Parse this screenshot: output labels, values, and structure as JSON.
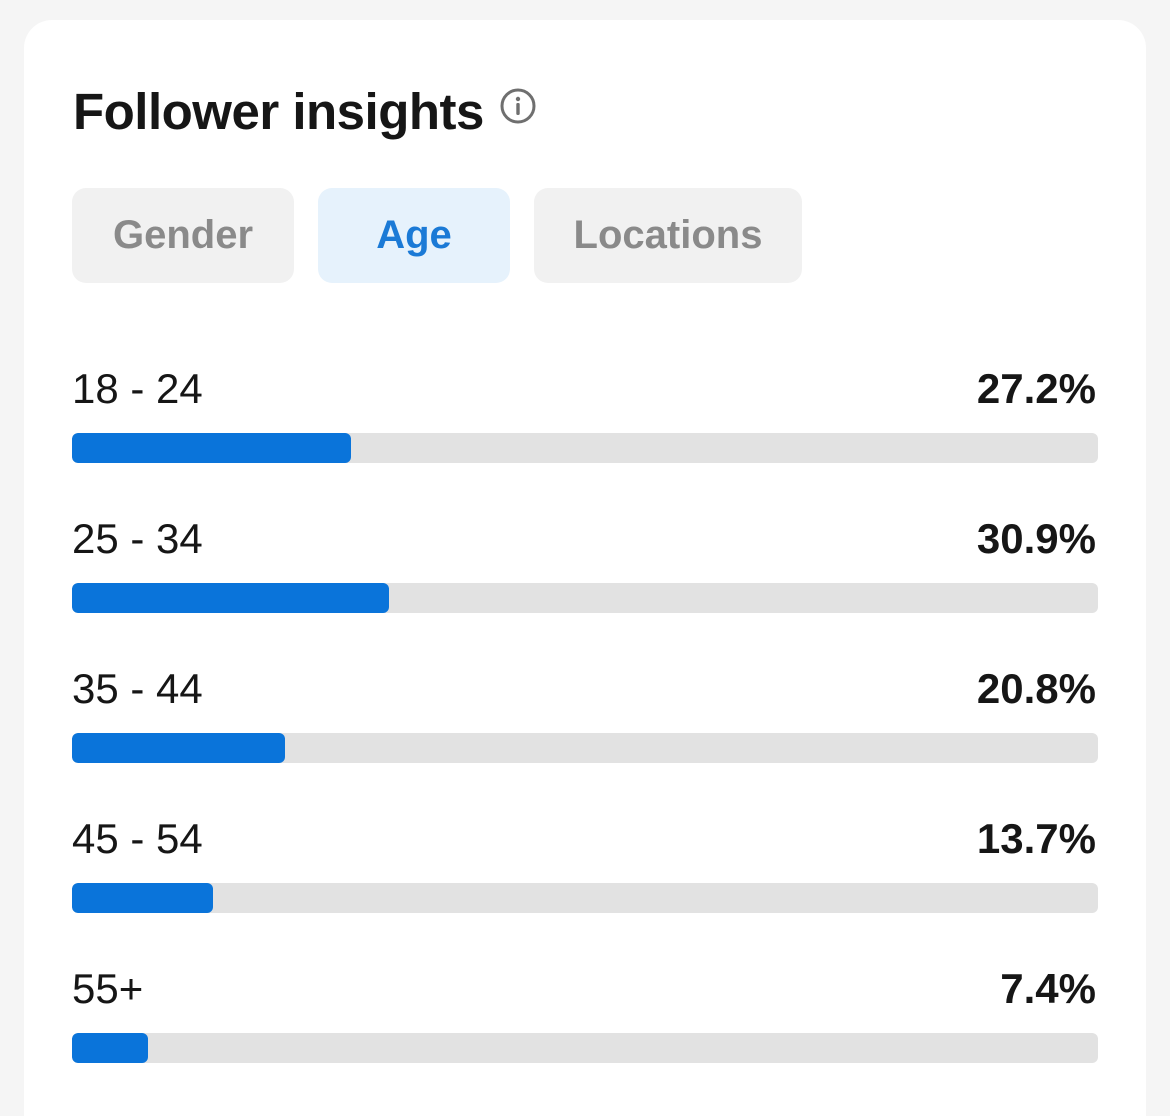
{
  "header": {
    "title": "Follower insights"
  },
  "tabs": [
    {
      "label": "Gender",
      "active": false
    },
    {
      "label": "Age",
      "active": true
    },
    {
      "label": "Locations",
      "active": false
    }
  ],
  "age_rows": [
    {
      "label": "18 - 24",
      "value": "27.2%",
      "percent": 27.2
    },
    {
      "label": "25 - 34",
      "value": "30.9%",
      "percent": 30.9
    },
    {
      "label": "35 - 44",
      "value": "20.8%",
      "percent": 20.8
    },
    {
      "label": "45 - 54",
      "value": "13.7%",
      "percent": 13.7
    },
    {
      "label": "55+",
      "value": "7.4%",
      "percent": 7.4
    }
  ],
  "colors": {
    "accent": "#0a74da",
    "active_tab_bg": "#e6f2fc",
    "active_tab_text": "#1b7ad6",
    "inactive_tab_bg": "#f1f1f1",
    "inactive_tab_text": "#8a8a8a",
    "track": "#e2e2e2"
  },
  "icons": {
    "info": "info-icon"
  }
}
